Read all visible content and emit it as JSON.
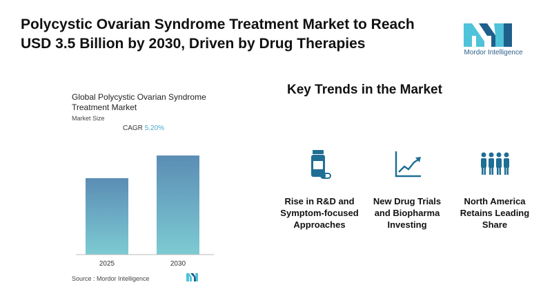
{
  "headline": "Polycystic Ovarian Syndrome Treatment Market to Reach USD 3.5 Billion by 2030, Driven by Drug Therapies",
  "brand": {
    "name": "Mordor Intelligence",
    "colors": {
      "teal": "#4fc3d9",
      "navy": "#1f5f8b"
    }
  },
  "chart": {
    "title": "Global Polycystic Ovarian Syndrome Treatment Market",
    "subtitle": "Market Size",
    "cagr_label": "CAGR",
    "cagr_value": "5.20%",
    "source_label": "Source :  Mordor Intelligence"
  },
  "chart_data": {
    "type": "bar",
    "categories": [
      "2025",
      "2030"
    ],
    "values": [
      2.7,
      3.5
    ],
    "title": "Global Polycystic Ovarian Syndrome Treatment Market",
    "ylabel": "Market Size",
    "ylim": [
      0,
      3.5
    ],
    "colors": {
      "top": "#5b8db5",
      "bottom": "#7dcbd3"
    }
  },
  "trends": {
    "title": "Key Trends in the Market",
    "items": [
      {
        "label": "Rise in R&D and Symptom-focused Approaches",
        "icon": "medicine-bottle-icon"
      },
      {
        "label": "New Drug Trials and Biopharma Investing",
        "icon": "trend-chart-icon"
      },
      {
        "label": "North America Retains Leading Share",
        "icon": "people-group-icon"
      }
    ],
    "icon_color": "#1f6e94"
  }
}
